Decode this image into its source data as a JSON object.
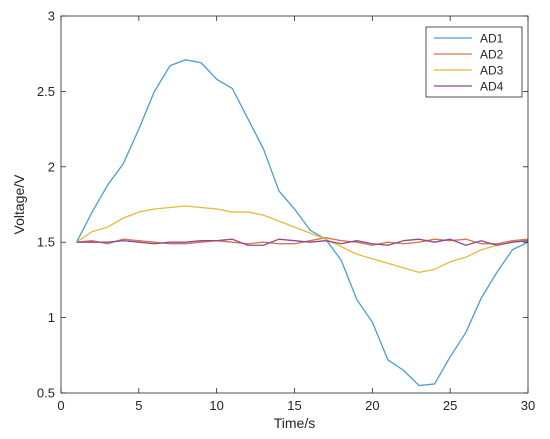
{
  "chart_data": {
    "type": "line",
    "title": "",
    "xlabel": "Time/s",
    "ylabel": "Voltage/V",
    "xlim": [
      0,
      30
    ],
    "ylim": [
      0.5,
      3
    ],
    "xticks": [
      0,
      5,
      10,
      15,
      20,
      25,
      30
    ],
    "yticks": [
      0.5,
      1,
      1.5,
      2,
      2.5,
      3
    ],
    "xtick_labels": [
      "0",
      "5",
      "10",
      "15",
      "20",
      "25",
      "30"
    ],
    "ytick_labels": [
      "0.5",
      "1",
      "1.5",
      "2",
      "2.5",
      "3"
    ],
    "grid": false,
    "legend_position": "top-right",
    "x": [
      1,
      2,
      3,
      4,
      5,
      6,
      7,
      8,
      9,
      10,
      11,
      12,
      13,
      14,
      15,
      16,
      17,
      18,
      19,
      20,
      21,
      22,
      23,
      24,
      25,
      26,
      27,
      28,
      29,
      30
    ],
    "series": [
      {
        "name": "AD1",
        "color": "#4a9fd1",
        "values": [
          1.5,
          1.7,
          1.88,
          2.02,
          2.25,
          2.5,
          2.67,
          2.71,
          2.69,
          2.58,
          2.52,
          2.32,
          2.12,
          1.84,
          1.72,
          1.58,
          1.52,
          1.38,
          1.12,
          0.97,
          0.72,
          0.65,
          0.55,
          0.56,
          0.74,
          0.9,
          1.13,
          1.3,
          1.45,
          1.5
        ]
      },
      {
        "name": "AD2",
        "color": "#d9734e",
        "values": [
          1.5,
          1.51,
          1.49,
          1.52,
          1.51,
          1.5,
          1.49,
          1.49,
          1.5,
          1.51,
          1.5,
          1.49,
          1.5,
          1.49,
          1.49,
          1.51,
          1.53,
          1.51,
          1.5,
          1.48,
          1.5,
          1.49,
          1.5,
          1.52,
          1.51,
          1.52,
          1.49,
          1.49,
          1.51,
          1.52
        ]
      },
      {
        "name": "AD3",
        "color": "#e9b83d",
        "values": [
          1.5,
          1.57,
          1.6,
          1.66,
          1.7,
          1.72,
          1.73,
          1.74,
          1.73,
          1.72,
          1.7,
          1.7,
          1.68,
          1.64,
          1.6,
          1.56,
          1.52,
          1.47,
          1.42,
          1.39,
          1.36,
          1.33,
          1.3,
          1.32,
          1.37,
          1.4,
          1.45,
          1.48,
          1.5,
          1.51
        ]
      },
      {
        "name": "AD4",
        "color": "#8a4c93",
        "values": [
          1.5,
          1.5,
          1.5,
          1.51,
          1.5,
          1.49,
          1.5,
          1.5,
          1.51,
          1.51,
          1.52,
          1.48,
          1.48,
          1.52,
          1.51,
          1.5,
          1.51,
          1.49,
          1.51,
          1.49,
          1.48,
          1.51,
          1.52,
          1.5,
          1.52,
          1.48,
          1.51,
          1.48,
          1.5,
          1.51
        ]
      }
    ]
  }
}
